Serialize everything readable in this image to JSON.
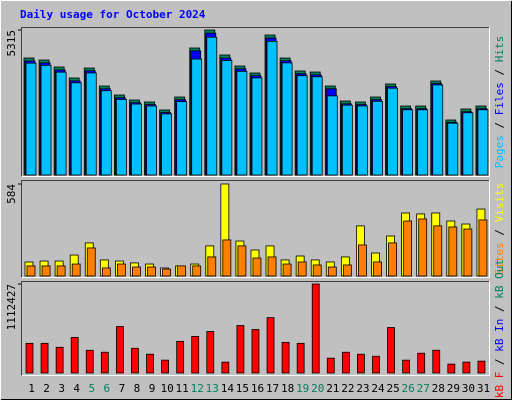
{
  "chart_data": [
    {
      "type": "bar",
      "title": "Daily usage for October 2024",
      "categories": [
        "1",
        "2",
        "3",
        "4",
        "5",
        "6",
        "7",
        "8",
        "9",
        "10",
        "11",
        "12",
        "13",
        "14",
        "15",
        "16",
        "17",
        "18",
        "19",
        "20",
        "21",
        "22",
        "23",
        "24",
        "25",
        "26",
        "27",
        "28",
        "29",
        "30",
        "31"
      ],
      "category_colors": [
        "#000000",
        "#000000",
        "#000000",
        "#000000",
        "#00805c",
        "#00805c",
        "#000000",
        "#000000",
        "#000000",
        "#000000",
        "#000000",
        "#00805c",
        "#00805c",
        "#000000",
        "#000000",
        "#000000",
        "#000000",
        "#000000",
        "#00805c",
        "#00805c",
        "#000000",
        "#000000",
        "#000000",
        "#000000",
        "#000000",
        "#00805c",
        "#00805c",
        "#000000",
        "#000000",
        "#000000",
        "#000000"
      ],
      "ylim": [
        0,
        5315
      ],
      "yticks": [
        5315
      ],
      "legend_separator": " / ",
      "series": [
        {
          "name": "Hits",
          "color": "#00805c",
          "values": [
            4289,
            4215,
            3959,
            3556,
            3922,
            3262,
            2932,
            2749,
            2676,
            2383,
            2859,
            4655,
            5315,
            4399,
            3995,
            3739,
            5132,
            4289,
            3812,
            3775,
            3262,
            2712,
            2676,
            2859,
            3336,
            2529,
            2529,
            3446,
            2016,
            2419,
            2529
          ]
        },
        {
          "name": "Files",
          "color": "#0000ff",
          "values": [
            4180,
            4110,
            3850,
            3450,
            3820,
            3160,
            2830,
            2650,
            2580,
            2290,
            2760,
            4550,
            5200,
            4290,
            3890,
            3640,
            5020,
            4190,
            3710,
            3670,
            3160,
            2610,
            2580,
            2760,
            3240,
            2430,
            2430,
            3350,
            1930,
            2320,
            2430
          ]
        },
        {
          "name": "Pages",
          "color": "#00c0ff",
          "values": [
            4100,
            4020,
            3770,
            3380,
            3740,
            3090,
            2770,
            2600,
            2530,
            2240,
            2690,
            4250,
            5050,
            4200,
            3800,
            3560,
            4900,
            4110,
            3640,
            3600,
            2900,
            2560,
            2530,
            2700,
            3180,
            2390,
            2390,
            3300,
            1900,
            2280,
            2390
          ]
        }
      ]
    },
    {
      "type": "bar",
      "ylim": [
        0,
        584
      ],
      "yticks": [
        584
      ],
      "legend_separator": " / ",
      "series": [
        {
          "name": "Visits",
          "color": "#ffff00",
          "values": [
            89,
            95,
            95,
            133,
            210,
            102,
            95,
            83,
            76,
            51,
            64,
            76,
            191,
            584,
            222,
            165,
            191,
            102,
            127,
            102,
            89,
            121,
            318,
            146,
            254,
            400,
            394,
            400,
            349,
            330,
            425
          ]
        },
        {
          "name": "Sites",
          "color": "#ff8000",
          "values": [
            64,
            64,
            64,
            76,
            178,
            51,
            76,
            57,
            57,
            44,
            64,
            64,
            121,
            229,
            191,
            114,
            121,
            76,
            89,
            70,
            57,
            70,
            197,
            89,
            210,
            349,
            362,
            318,
            311,
            298,
            356
          ]
        }
      ]
    },
    {
      "type": "bar",
      "ylim": [
        0,
        1112427
      ],
      "yticks": [
        1112427
      ],
      "legend_separator": " / ",
      "series": [
        {
          "name": "kB F",
          "color": "#ff0000",
          "values": [
            370800,
            370800,
            321360,
            444960,
            284280,
            259560,
            580920,
            309000,
            234840,
            160680,
            395520,
            457320,
            519120,
            135960,
            593280,
            543840,
            692160,
            383160,
            370800,
            1112427,
            185400,
            259560,
            234840,
            210120,
            568560,
            160680,
            247200,
            284280,
            111240,
            135960,
            148320
          ]
        }
      ],
      "legend_only": [
        {
          "name": "kB In",
          "color": "#0000ff"
        },
        {
          "name": "kB Out",
          "color": "#00805c"
        }
      ]
    }
  ]
}
